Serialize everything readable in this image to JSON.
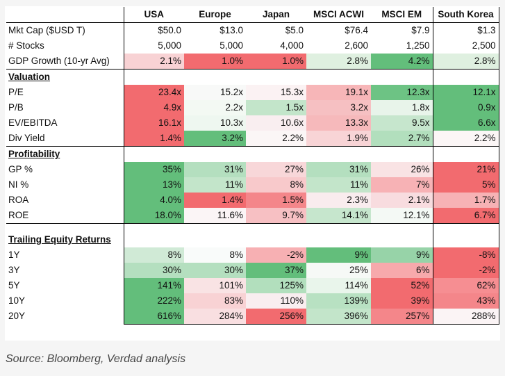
{
  "columns": [
    "USA",
    "Europe",
    "Japan",
    "MSCI ACWI",
    "MSCI EM",
    "South Korea"
  ],
  "rows": [
    {
      "label": "Mkt Cap ($USD T)",
      "values": [
        "$50.0",
        "$13.0",
        "$5.0",
        "$76.4",
        "$7.9",
        "$1.3"
      ],
      "colors": [
        "#ffffff",
        "#ffffff",
        "#ffffff",
        "#ffffff",
        "#ffffff",
        "#ffffff"
      ]
    },
    {
      "label": "# Stocks",
      "values": [
        "5,000",
        "5,000",
        "4,000",
        "2,600",
        "1,250",
        "2,500"
      ],
      "colors": [
        "#ffffff",
        "#ffffff",
        "#ffffff",
        "#ffffff",
        "#ffffff",
        "#ffffff"
      ]
    },
    {
      "label": "GDP Growth (10-yr Avg)",
      "values": [
        "2.1%",
        "1.0%",
        "1.0%",
        "2.8%",
        "4.2%",
        "2.8%"
      ],
      "colors": [
        "#f8d2d4",
        "#f26b6f",
        "#f26b6f",
        "#dff0e0",
        "#63be7b",
        "#dff0e0"
      ]
    },
    {
      "section": "Valuation"
    },
    {
      "label": "P/E",
      "values": [
        "23.4x",
        "15.2x",
        "15.3x",
        "19.1x",
        "12.3x",
        "12.1x"
      ],
      "colors": [
        "#f26b6f",
        "#f8f9f8",
        "#fbf2f3",
        "#f7b6b8",
        "#6dc384",
        "#63be7b"
      ]
    },
    {
      "label": "P/B",
      "values": [
        "4.9x",
        "2.2x",
        "1.5x",
        "3.2x",
        "1.8x",
        "0.9x"
      ],
      "colors": [
        "#f26b6f",
        "#f3f9f3",
        "#c3e5ca",
        "#f6c0c2",
        "#e8f4ea",
        "#63be7b"
      ]
    },
    {
      "label": "EV/EBITDA",
      "values": [
        "16.1x",
        "10.3x",
        "10.6x",
        "13.3x",
        "9.5x",
        "6.6x"
      ],
      "colors": [
        "#f26b6f",
        "#eef7f0",
        "#f9eef0",
        "#f6b9bb",
        "#c6e6cd",
        "#63be7b"
      ]
    },
    {
      "label": "Div Yield",
      "values": [
        "1.4%",
        "3.2%",
        "2.2%",
        "1.9%",
        "2.7%",
        "2.2%"
      ],
      "colors": [
        "#f26b6f",
        "#63be7b",
        "#fbf6f6",
        "#f8d4d6",
        "#b2dfbd",
        "#fbf6f6"
      ]
    },
    {
      "section": "Profitability"
    },
    {
      "label": "GP %",
      "values": [
        "35%",
        "31%",
        "27%",
        "31%",
        "26%",
        "21%"
      ],
      "colors": [
        "#63be7b",
        "#b4dfbf",
        "#f8d7d9",
        "#b4dfbf",
        "#f9e3e4",
        "#f26b6f"
      ]
    },
    {
      "label": "NI %",
      "values": [
        "13%",
        "11%",
        "8%",
        "11%",
        "7%",
        "5%"
      ],
      "colors": [
        "#63be7b",
        "#c3e5ca",
        "#f8c9cb",
        "#c3e5ca",
        "#f7b2b5",
        "#f26b6f"
      ]
    },
    {
      "label": "ROA",
      "values": [
        "4.0%",
        "1.4%",
        "1.5%",
        "2.3%",
        "2.1%",
        "1.7%"
      ],
      "colors": [
        "#63be7b",
        "#f26b6f",
        "#f4868a",
        "#f9ecee",
        "#f8dcdf",
        "#f7b2b5"
      ]
    },
    {
      "label": "ROE",
      "values": [
        "18.0%",
        "11.6%",
        "9.7%",
        "14.1%",
        "12.1%",
        "6.7%"
      ],
      "colors": [
        "#63be7b",
        "#fbf5f6",
        "#f7c0c3",
        "#c6e6cd",
        "#f4f9f5",
        "#f26b6f"
      ]
    },
    {
      "gap": true
    },
    {
      "section": "Trailing Equity Returns"
    },
    {
      "label": "1Y",
      "values": [
        "8%",
        "8%",
        "-2%",
        "9%",
        "9%",
        "-8%"
      ],
      "colors": [
        "#d0ead6",
        "#f9fbfa",
        "#f7b0b3",
        "#63be7b",
        "#97d3a8",
        "#f26b6f"
      ]
    },
    {
      "label": "3Y",
      "values": [
        "30%",
        "30%",
        "37%",
        "25%",
        "6%",
        "-2%"
      ],
      "colors": [
        "#b4dfbf",
        "#b4dfbf",
        "#63be7b",
        "#f6f9f6",
        "#f7a9ac",
        "#f26b6f"
      ]
    },
    {
      "label": "5Y",
      "values": [
        "141%",
        "101%",
        "125%",
        "114%",
        "52%",
        "62%"
      ],
      "colors": [
        "#63be7b",
        "#f9e3e4",
        "#b2dfbd",
        "#e9f5eb",
        "#f26b6f",
        "#f68e92"
      ]
    },
    {
      "label": "10Y",
      "values": [
        "222%",
        "83%",
        "110%",
        "139%",
        "39%",
        "43%"
      ],
      "colors": [
        "#63be7b",
        "#f8d2d4",
        "#f9eef0",
        "#b8e1c2",
        "#f26b6f",
        "#f4868a"
      ]
    },
    {
      "label": "20Y",
      "values": [
        "616%",
        "284%",
        "256%",
        "396%",
        "257%",
        "288%"
      ],
      "colors": [
        "#63be7b",
        "#f9dfe1",
        "#f26b6f",
        "#c3e5ca",
        "#f4868a",
        "#fbf4f5"
      ]
    }
  ],
  "source": "Source: Bloomberg, Verdad analysis"
}
